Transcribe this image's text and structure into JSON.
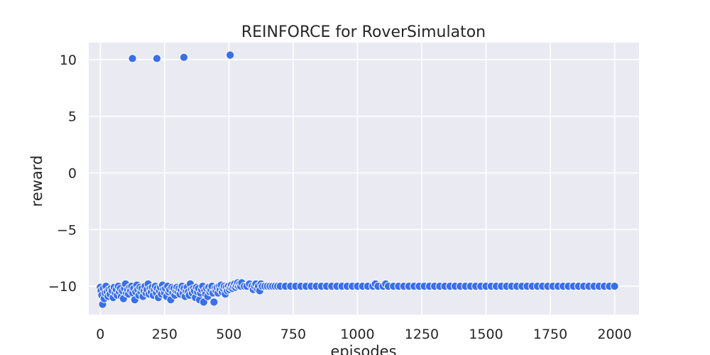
{
  "chart_data": {
    "type": "scatter",
    "title": "REINFORCE for RoverSimulaton",
    "xlabel": "episodes",
    "ylabel": "reward",
    "xlim": [
      -45,
      2095
    ],
    "ylim": [
      -12.5,
      11.5
    ],
    "xticks": [
      0,
      250,
      500,
      750,
      1000,
      1250,
      1500,
      1750,
      2000
    ],
    "xtick_labels": [
      "0",
      "250",
      "500",
      "750",
      "1000",
      "1250",
      "1500",
      "1750",
      "2000"
    ],
    "yticks": [
      10,
      5,
      0,
      -5,
      -10
    ],
    "ytick_labels": [
      "10",
      "5",
      "0",
      "−5",
      "−10"
    ],
    "grid": true,
    "background": "#eaeaf2",
    "marker_color": "#3a6fe8",
    "marker_edge": "#ffffff",
    "series": [
      {
        "points": [
          [
            0,
            -10.1
          ],
          [
            3,
            -10.4
          ],
          [
            6,
            -10.8
          ],
          [
            9,
            -11.6
          ],
          [
            12,
            -10.2
          ],
          [
            15,
            -11.1
          ],
          [
            18,
            -10.6
          ],
          [
            22,
            -10.0
          ],
          [
            26,
            -10.5
          ],
          [
            30,
            -10.9
          ],
          [
            34,
            -10.3
          ],
          [
            38,
            -10.7
          ],
          [
            42,
            -10.2
          ],
          [
            46,
            -10.4
          ],
          [
            50,
            -11.0
          ],
          [
            54,
            -10.1
          ],
          [
            58,
            -10.6
          ],
          [
            62,
            -10.3
          ],
          [
            66,
            -10.8
          ],
          [
            70,
            -10.0
          ],
          [
            74,
            -10.5
          ],
          [
            78,
            -10.2
          ],
          [
            82,
            -10.9
          ],
          [
            86,
            -10.4
          ],
          [
            90,
            -11.1
          ],
          [
            94,
            -10.2
          ],
          [
            98,
            -9.8
          ],
          [
            102,
            -10.6
          ],
          [
            106,
            -10.3
          ],
          [
            110,
            -10.7
          ],
          [
            114,
            -10.1
          ],
          [
            118,
            -10.4
          ],
          [
            122,
            -10.0
          ],
          [
            126,
            -10.6
          ],
          [
            130,
            -10.2
          ],
          [
            134,
            -11.2
          ],
          [
            138,
            -10.5
          ],
          [
            142,
            -9.9
          ],
          [
            146,
            -10.3
          ],
          [
            150,
            -10.8
          ],
          [
            154,
            -10.1
          ],
          [
            158,
            -10.5
          ],
          [
            162,
            -10.2
          ],
          [
            166,
            -10.9
          ],
          [
            170,
            -10.4
          ],
          [
            174,
            -10.0
          ],
          [
            178,
            -10.6
          ],
          [
            182,
            -10.3
          ],
          [
            186,
            -9.8
          ],
          [
            190,
            -10.7
          ],
          [
            194,
            -10.2
          ],
          [
            198,
            -10.5
          ],
          [
            202,
            -10.1
          ],
          [
            206,
            -10.8
          ],
          [
            210,
            -10.3
          ],
          [
            214,
            -10.0
          ],
          [
            218,
            -10.6
          ],
          [
            222,
            -10.2
          ],
          [
            226,
            -11.0
          ],
          [
            230,
            -10.4
          ],
          [
            234,
            -10.1
          ],
          [
            238,
            -10.7
          ],
          [
            242,
            -9.9
          ],
          [
            246,
            -10.3
          ],
          [
            250,
            -10.6
          ],
          [
            254,
            -10.2
          ],
          [
            258,
            -10.9
          ],
          [
            262,
            -10.0
          ],
          [
            266,
            -10.5
          ],
          [
            270,
            -10.3
          ],
          [
            274,
            -11.2
          ],
          [
            278,
            -10.1
          ],
          [
            282,
            -10.6
          ],
          [
            286,
            -10.2
          ],
          [
            290,
            -10.8
          ],
          [
            294,
            -10.4
          ],
          [
            298,
            -10.1
          ],
          [
            302,
            -10.5
          ],
          [
            306,
            -10.2
          ],
          [
            310,
            -10.7
          ],
          [
            314,
            -10.3
          ],
          [
            318,
            -10.0
          ],
          [
            322,
            -10.6
          ],
          [
            326,
            -10.2
          ],
          [
            330,
            -10.9
          ],
          [
            334,
            -10.4
          ],
          [
            338,
            -10.1
          ],
          [
            342,
            -10.5
          ],
          [
            346,
            -10.8
          ],
          [
            350,
            -9.8
          ],
          [
            354,
            -10.3
          ],
          [
            358,
            -10.6
          ],
          [
            362,
            -10.2
          ],
          [
            366,
            -10.4
          ],
          [
            370,
            -11.0
          ],
          [
            374,
            -10.1
          ],
          [
            378,
            -10.5
          ],
          [
            382,
            -10.2
          ],
          [
            386,
            -11.2
          ],
          [
            390,
            -10.6
          ],
          [
            394,
            -10.3
          ],
          [
            398,
            -10.0
          ],
          [
            402,
            -11.4
          ],
          [
            406,
            -10.4
          ],
          [
            410,
            -10.7
          ],
          [
            414,
            -10.2
          ],
          [
            418,
            -10.9
          ],
          [
            422,
            -10.1
          ],
          [
            426,
            -10.5
          ],
          [
            430,
            -10.3
          ],
          [
            434,
            -10.0
          ],
          [
            438,
            -10.6
          ],
          [
            442,
            -11.4
          ],
          [
            446,
            -10.2
          ],
          [
            450,
            -10.4
          ],
          [
            454,
            -10.1
          ],
          [
            458,
            -10.6
          ],
          [
            462,
            -10.0
          ],
          [
            466,
            -10.3
          ],
          [
            470,
            -9.9
          ],
          [
            474,
            -10.5
          ],
          [
            478,
            -10.2
          ],
          [
            482,
            -10.0
          ],
          [
            486,
            -10.7
          ],
          [
            490,
            -10.1
          ],
          [
            494,
            -10.4
          ],
          [
            498,
            -10.0
          ],
          [
            502,
            -10.3
          ],
          [
            506,
            -10.1
          ],
          [
            510,
            -9.9
          ],
          [
            514,
            -10.2
          ],
          [
            518,
            -10.0
          ],
          [
            522,
            -9.8
          ],
          [
            526,
            -10.1
          ],
          [
            530,
            -9.9
          ],
          [
            534,
            -9.7
          ],
          [
            538,
            -10.0
          ],
          [
            542,
            -9.8
          ],
          [
            546,
            -10.0
          ],
          [
            550,
            -9.7
          ],
          [
            560,
            -10.0
          ],
          [
            570,
            -10.0
          ],
          [
            580,
            -9.8
          ],
          [
            590,
            -10.0
          ],
          [
            595,
            -10.3
          ],
          [
            600,
            -10.0
          ],
          [
            605,
            -9.8
          ],
          [
            610,
            -10.2
          ],
          [
            615,
            -10.0
          ],
          [
            620,
            -10.4
          ],
          [
            625,
            -9.8
          ],
          [
            630,
            -10.0
          ],
          [
            640,
            -10.0
          ],
          [
            650,
            -10.0
          ],
          [
            660,
            -10.0
          ],
          [
            670,
            -10.0
          ],
          [
            680,
            -10.0
          ],
          [
            690,
            -10.0
          ],
          [
            700,
            -10.0
          ],
          [
            720,
            -10.0
          ],
          [
            740,
            -10.0
          ],
          [
            760,
            -10.0
          ],
          [
            780,
            -10.0
          ],
          [
            800,
            -10.0
          ],
          [
            820,
            -10.0
          ],
          [
            840,
            -10.0
          ],
          [
            860,
            -10.0
          ],
          [
            880,
            -10.0
          ],
          [
            900,
            -10.0
          ],
          [
            920,
            -10.0
          ],
          [
            940,
            -10.0
          ],
          [
            960,
            -10.0
          ],
          [
            980,
            -10.0
          ],
          [
            1000,
            -10.0
          ],
          [
            1020,
            -10.0
          ],
          [
            1040,
            -10.0
          ],
          [
            1060,
            -10.0
          ],
          [
            1070,
            -9.8
          ],
          [
            1080,
            -10.0
          ],
          [
            1100,
            -10.0
          ],
          [
            1110,
            -9.8
          ],
          [
            1120,
            -10.0
          ],
          [
            1140,
            -10.0
          ],
          [
            1160,
            -10.0
          ],
          [
            1180,
            -10.0
          ],
          [
            1200,
            -10.0
          ],
          [
            1220,
            -10.0
          ],
          [
            1240,
            -10.0
          ],
          [
            1260,
            -10.0
          ],
          [
            1280,
            -10.0
          ],
          [
            1300,
            -10.0
          ],
          [
            1320,
            -10.0
          ],
          [
            1340,
            -10.0
          ],
          [
            1360,
            -10.0
          ],
          [
            1380,
            -10.0
          ],
          [
            1400,
            -10.0
          ],
          [
            1420,
            -10.0
          ],
          [
            1440,
            -10.0
          ],
          [
            1460,
            -10.0
          ],
          [
            1480,
            -10.0
          ],
          [
            1500,
            -10.0
          ],
          [
            1520,
            -10.0
          ],
          [
            1540,
            -10.0
          ],
          [
            1560,
            -10.0
          ],
          [
            1580,
            -10.0
          ],
          [
            1600,
            -10.0
          ],
          [
            1620,
            -10.0
          ],
          [
            1640,
            -10.0
          ],
          [
            1660,
            -10.0
          ],
          [
            1680,
            -10.0
          ],
          [
            1700,
            -10.0
          ],
          [
            1720,
            -10.0
          ],
          [
            1740,
            -10.0
          ],
          [
            1760,
            -10.0
          ],
          [
            1780,
            -10.0
          ],
          [
            1800,
            -10.0
          ],
          [
            1820,
            -10.0
          ],
          [
            1840,
            -10.0
          ],
          [
            1860,
            -10.0
          ],
          [
            1880,
            -10.0
          ],
          [
            1900,
            -10.0
          ],
          [
            1920,
            -10.0
          ],
          [
            1940,
            -10.0
          ],
          [
            1960,
            -10.0
          ],
          [
            1980,
            -10.0
          ],
          [
            2000,
            -10.0
          ],
          [
            125,
            10.1
          ],
          [
            220,
            10.1
          ],
          [
            325,
            10.2
          ],
          [
            505,
            10.4
          ]
        ]
      }
    ]
  }
}
